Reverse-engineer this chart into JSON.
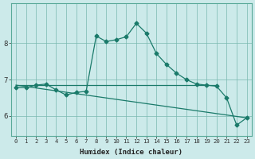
{
  "xlabel": "Humidex (Indice chaleur)",
  "x_values": [
    0,
    1,
    2,
    3,
    4,
    5,
    6,
    7,
    8,
    9,
    10,
    11,
    12,
    13,
    14,
    15,
    16,
    17,
    18,
    19,
    20,
    21,
    22,
    23
  ],
  "main_y": [
    6.78,
    6.78,
    6.85,
    6.88,
    6.72,
    6.58,
    6.65,
    6.68,
    8.2,
    8.05,
    8.1,
    8.18,
    8.55,
    8.28,
    7.72,
    7.42,
    7.18,
    7.0,
    6.88,
    6.85,
    6.82,
    6.5,
    5.75,
    5.95
  ],
  "reg_y_start": 6.85,
  "reg_y_end": 5.95,
  "reg_x_start": 0,
  "reg_x_end": 23,
  "horiz_y": 6.85,
  "horiz_x_start": 0,
  "horiz_x_end": 20,
  "ylim": [
    5.45,
    9.1
  ],
  "yticks": [
    6,
    7,
    8
  ],
  "xlim": [
    -0.5,
    23.5
  ],
  "xticks": [
    0,
    1,
    2,
    3,
    4,
    5,
    6,
    7,
    8,
    9,
    10,
    11,
    12,
    13,
    14,
    15,
    16,
    17,
    18,
    19,
    20,
    21,
    22,
    23
  ],
  "line_color": "#1a7a6a",
  "bg_color": "#cceaea",
  "grid_color": "#7ab8b0",
  "marker": "D",
  "marker_size": 2.5,
  "linewidth": 0.9
}
